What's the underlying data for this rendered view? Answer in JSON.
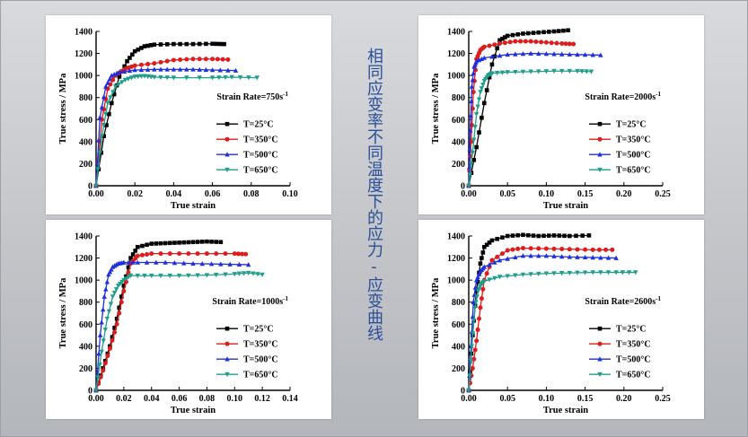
{
  "caption": "相同应变率不同温度下的应力-应变曲线",
  "colors": {
    "T25": "#000000",
    "T350": "#e01b1b",
    "T500": "#1f2ee0",
    "T650": "#1f9e8c",
    "caption": "#2a4f9a"
  },
  "chart_data": [
    {
      "type": "line",
      "panel": "top-left",
      "xlabel": "True strain",
      "ylabel": "True stress / MPa",
      "annotation": "Strain Rate=750s",
      "annotation_sup": "-1",
      "xlim": [
        0,
        0.1
      ],
      "ylim": [
        0,
        1400
      ],
      "xticks": [
        "0.00",
        "0.02",
        "0.04",
        "0.06",
        "0.08",
        "0.10"
      ],
      "yticks": [
        "0",
        "200",
        "400",
        "600",
        "800",
        "1000",
        "1200",
        "1400"
      ],
      "series": [
        {
          "name": "T=25°C",
          "key": "T25",
          "marker": "square",
          "x": [
            0,
            0.004,
            0.008,
            0.012,
            0.016,
            0.02,
            0.025,
            0.03,
            0.04,
            0.05,
            0.06,
            0.066
          ],
          "y": [
            0,
            450,
            750,
            990,
            1130,
            1220,
            1265,
            1280,
            1285,
            1285,
            1288,
            1285
          ]
        },
        {
          "name": "T=350°C",
          "key": "T350",
          "marker": "circle",
          "x": [
            0,
            0.003,
            0.006,
            0.01,
            0.015,
            0.02,
            0.03,
            0.04,
            0.05,
            0.06,
            0.068
          ],
          "y": [
            0,
            600,
            880,
            1000,
            1060,
            1090,
            1110,
            1140,
            1150,
            1150,
            1145
          ]
        },
        {
          "name": "T=500°C",
          "key": "T500",
          "marker": "triangle",
          "x": [
            0,
            0.002,
            0.005,
            0.008,
            0.012,
            0.02,
            0.03,
            0.04,
            0.05,
            0.06,
            0.072
          ],
          "y": [
            0,
            620,
            900,
            1000,
            1030,
            1050,
            1055,
            1055,
            1055,
            1050,
            1045
          ]
        },
        {
          "name": "T=650°C",
          "key": "T650",
          "marker": "triangle-down",
          "x": [
            0,
            0.003,
            0.006,
            0.01,
            0.015,
            0.02,
            0.025,
            0.03,
            0.04,
            0.06,
            0.07,
            0.083
          ],
          "y": [
            0,
            450,
            750,
            900,
            960,
            990,
            995,
            985,
            980,
            980,
            985,
            980
          ]
        }
      ]
    },
    {
      "type": "line",
      "panel": "bottom-left",
      "xlabel": "True strain",
      "ylabel": "True stress / MPa",
      "annotation": "Strain Rate=1000s",
      "annotation_sup": "-1",
      "xlim": [
        0,
        0.14
      ],
      "ylim": [
        0,
        1400
      ],
      "xticks": [
        "0.00",
        "0.02",
        "0.04",
        "0.06",
        "0.08",
        "0.10",
        "0.12",
        "0.14"
      ],
      "yticks": [
        "0",
        "200",
        "400",
        "600",
        "800",
        "1000",
        "1200",
        "1400"
      ],
      "series": [
        {
          "name": "T=25°C",
          "key": "T25",
          "marker": "square",
          "x": [
            0,
            0.005,
            0.01,
            0.015,
            0.02,
            0.025,
            0.03,
            0.04,
            0.05,
            0.06,
            0.07,
            0.08,
            0.09
          ],
          "y": [
            0,
            200,
            400,
            650,
            950,
            1200,
            1300,
            1330,
            1335,
            1340,
            1345,
            1350,
            1345
          ]
        },
        {
          "name": "T=350°C",
          "key": "T350",
          "marker": "circle",
          "x": [
            0,
            0.005,
            0.01,
            0.015,
            0.02,
            0.025,
            0.03,
            0.04,
            0.06,
            0.08,
            0.1,
            0.108
          ],
          "y": [
            0,
            180,
            380,
            600,
            900,
            1150,
            1220,
            1240,
            1240,
            1240,
            1240,
            1235
          ]
        },
        {
          "name": "T=500°C",
          "key": "T500",
          "marker": "triangle",
          "x": [
            0,
            0.003,
            0.006,
            0.009,
            0.012,
            0.016,
            0.02,
            0.03,
            0.05,
            0.07,
            0.09,
            0.11
          ],
          "y": [
            0,
            500,
            850,
            1050,
            1120,
            1150,
            1160,
            1160,
            1160,
            1150,
            1145,
            1140
          ]
        },
        {
          "name": "T=650°C",
          "key": "T650",
          "marker": "triangle-down",
          "x": [
            0,
            0.004,
            0.008,
            0.012,
            0.016,
            0.02,
            0.025,
            0.04,
            0.06,
            0.08,
            0.1,
            0.11,
            0.12
          ],
          "y": [
            0,
            350,
            650,
            850,
            950,
            1000,
            1040,
            1040,
            1040,
            1045,
            1055,
            1065,
            1050
          ]
        }
      ]
    },
    {
      "type": "line",
      "panel": "top-right",
      "xlabel": "True strain",
      "ylabel": "True stress / MPa",
      "annotation": "Strain Rate=2000s",
      "annotation_sup": "-1",
      "xlim": [
        0,
        0.25
      ],
      "ylim": [
        0,
        1400
      ],
      "xticks": [
        "0.00",
        "0.05",
        "0.10",
        "0.15",
        "0.20",
        "0.25"
      ],
      "yticks": [
        "0",
        "200",
        "400",
        "600",
        "800",
        "1000",
        "1200",
        "1400"
      ],
      "series": [
        {
          "name": "T=25°C",
          "key": "T25",
          "marker": "square",
          "x": [
            0,
            0.01,
            0.02,
            0.03,
            0.04,
            0.05,
            0.07,
            0.09,
            0.11,
            0.128
          ],
          "y": [
            0,
            350,
            750,
            1100,
            1320,
            1360,
            1380,
            1390,
            1400,
            1410
          ]
        },
        {
          "name": "T=350°C",
          "key": "T350",
          "marker": "circle",
          "x": [
            0,
            0.003,
            0.006,
            0.01,
            0.015,
            0.02,
            0.04,
            0.06,
            0.08,
            0.1,
            0.12,
            0.135
          ],
          "y": [
            0,
            400,
            850,
            1150,
            1230,
            1260,
            1290,
            1310,
            1310,
            1300,
            1290,
            1285
          ]
        },
        {
          "name": "T=500°C",
          "key": "T500",
          "marker": "triangle",
          "x": [
            0,
            0.002,
            0.004,
            0.007,
            0.01,
            0.02,
            0.05,
            0.08,
            0.11,
            0.14,
            0.17
          ],
          "y": [
            0,
            500,
            900,
            1080,
            1130,
            1160,
            1190,
            1200,
            1195,
            1190,
            1185
          ]
        },
        {
          "name": "T=650°C",
          "key": "T650",
          "marker": "triangle-down",
          "x": [
            0,
            0.005,
            0.01,
            0.015,
            0.02,
            0.025,
            0.03,
            0.05,
            0.08,
            0.11,
            0.14,
            0.158
          ],
          "y": [
            0,
            300,
            650,
            850,
            950,
            1000,
            1020,
            1030,
            1035,
            1040,
            1040,
            1035
          ]
        }
      ]
    },
    {
      "type": "line",
      "panel": "bottom-right",
      "xlabel": "True strain",
      "ylabel": "True stress / MPa",
      "annotation": "Strain Rate=2600s",
      "annotation_sup": "-1",
      "xlim": [
        0,
        0.25
      ],
      "ylim": [
        0,
        1400
      ],
      "xticks": [
        "0.00",
        "0.05",
        "0.10",
        "0.15",
        "0.20",
        "0.25"
      ],
      "yticks": [
        "0",
        "200",
        "400",
        "600",
        "800",
        "1000",
        "1200",
        "1400"
      ],
      "series": [
        {
          "name": "T=25°C",
          "key": "T25",
          "marker": "square",
          "x": [
            0,
            0.005,
            0.01,
            0.015,
            0.02,
            0.03,
            0.05,
            0.07,
            0.09,
            0.11,
            0.13,
            0.155
          ],
          "y": [
            0,
            500,
            900,
            1150,
            1300,
            1360,
            1400,
            1410,
            1400,
            1405,
            1400,
            1405
          ]
        },
        {
          "name": "T=350°C",
          "key": "T350",
          "marker": "circle",
          "x": [
            0,
            0.005,
            0.01,
            0.015,
            0.02,
            0.03,
            0.05,
            0.07,
            0.1,
            0.13,
            0.16,
            0.185
          ],
          "y": [
            0,
            200,
            450,
            750,
            1000,
            1180,
            1270,
            1290,
            1285,
            1280,
            1275,
            1275
          ]
        },
        {
          "name": "T=500°C",
          "key": "T500",
          "marker": "triangle",
          "x": [
            0,
            0.003,
            0.006,
            0.01,
            0.015,
            0.02,
            0.04,
            0.07,
            0.1,
            0.13,
            0.16,
            0.19
          ],
          "y": [
            0,
            400,
            800,
            1000,
            1080,
            1120,
            1180,
            1220,
            1220,
            1210,
            1205,
            1200
          ]
        },
        {
          "name": "T=650°C",
          "key": "T650",
          "marker": "triangle-down",
          "x": [
            0,
            0.004,
            0.008,
            0.012,
            0.016,
            0.02,
            0.04,
            0.07,
            0.1,
            0.13,
            0.16,
            0.19,
            0.215
          ],
          "y": [
            0,
            400,
            750,
            900,
            960,
            990,
            1030,
            1050,
            1060,
            1065,
            1070,
            1070,
            1070
          ]
        }
      ]
    }
  ]
}
